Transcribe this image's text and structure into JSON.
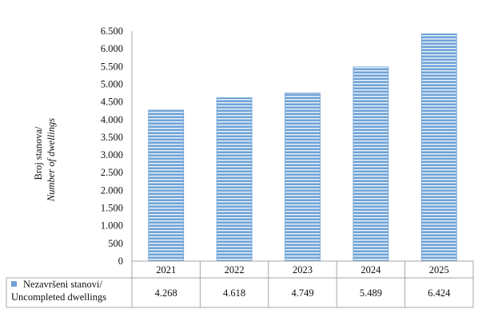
{
  "chart_data": {
    "type": "bar",
    "categories": [
      "2021",
      "2022",
      "2023",
      "2024",
      "2025"
    ],
    "series": [
      {
        "name": "Nezavršeni stanovi/ Uncompleted dwellings",
        "name_lines": [
          "Nezavršeni stanovi/",
          "Uncompleted dwellings"
        ],
        "values": [
          4268,
          4618,
          4749,
          5489,
          6424
        ],
        "labels": [
          "4.268",
          "4.618",
          "4.749",
          "5.489",
          "6.424"
        ]
      }
    ],
    "ylabel_lines": [
      "Broj stanova/",
      "Number of dwellings"
    ],
    "ylim": [
      0,
      6500
    ],
    "yticks": [
      0,
      500,
      1000,
      1500,
      2000,
      2500,
      3000,
      3500,
      4000,
      4500,
      5000,
      5500,
      6000,
      6500
    ],
    "ytick_labels": [
      "0",
      "500",
      "1.000",
      "1.500",
      "2.000",
      "2.500",
      "3.000",
      "3.500",
      "4.000",
      "4.500",
      "5.000",
      "5.500",
      "6.000",
      "6.500"
    ],
    "grid": false,
    "legend": "data-table-left",
    "bar_color": "#6fa3d6",
    "stripe_color": "#eef5fc"
  }
}
